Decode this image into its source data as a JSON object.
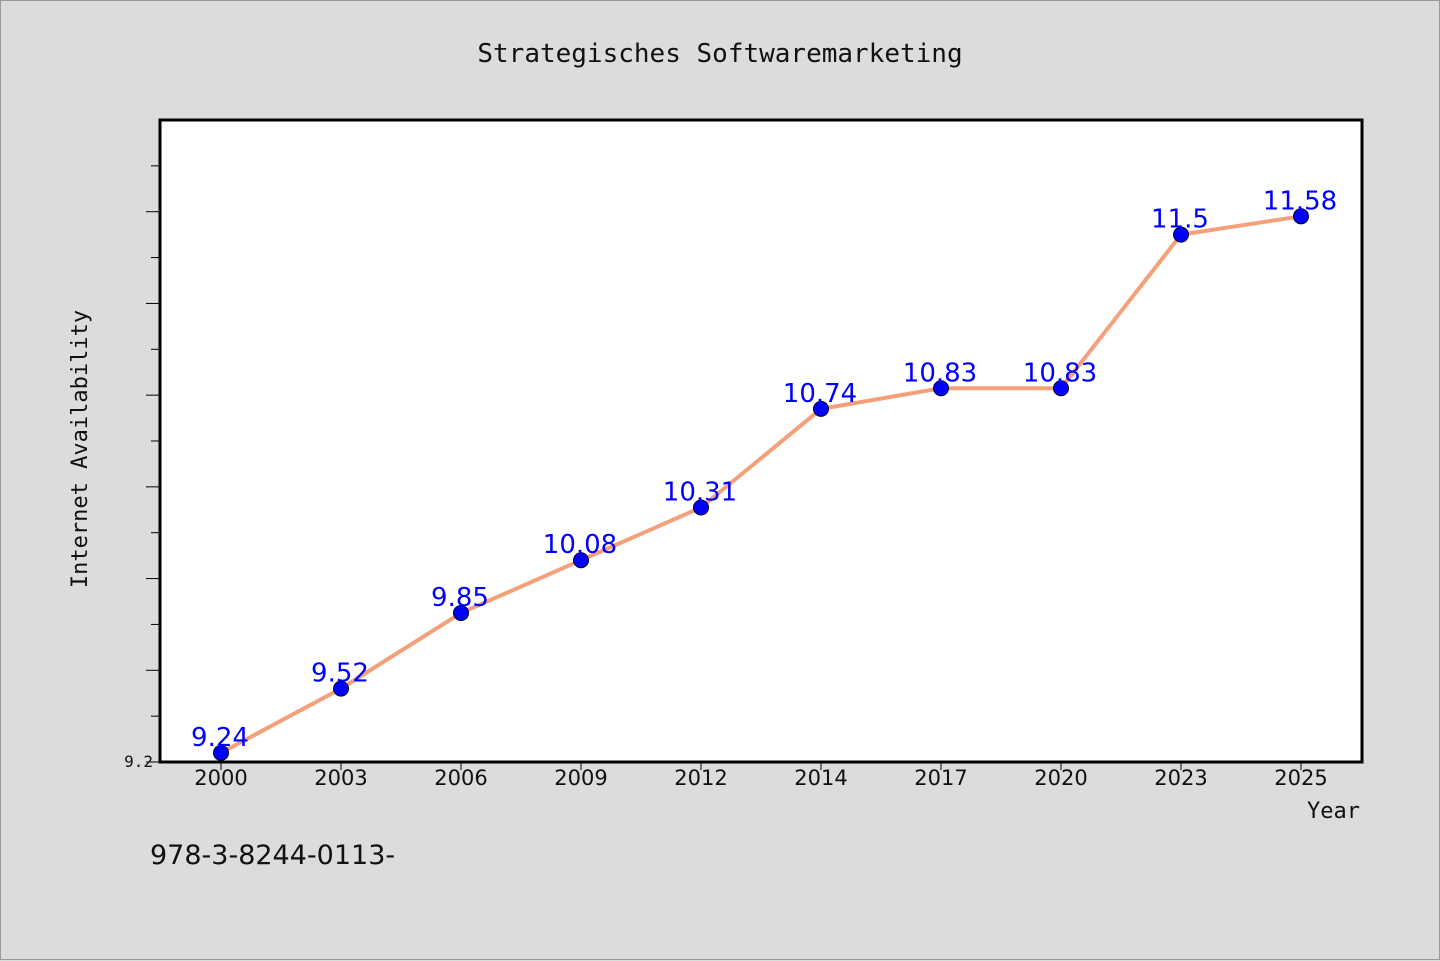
{
  "chart_data": {
    "type": "line",
    "title": "Strategisches Softwaremarketing",
    "xlabel": "Year",
    "ylabel": "Internet Availability",
    "categories": [
      "2000",
      "2003",
      "2006",
      "2009",
      "2012",
      "2014",
      "2017",
      "2020",
      "2023",
      "2025"
    ],
    "series": [
      {
        "values": [
          9.24,
          9.52,
          9.85,
          10.08,
          10.31,
          10.74,
          10.83,
          10.83,
          11.5,
          11.58
        ]
      }
    ],
    "data_labels": [
      "9.24",
      "9.52",
      "9.85",
      "10.08",
      "10.31",
      "10.74",
      "10.83",
      "10.83",
      "11.5",
      "11.58"
    ],
    "ylim": [
      9.2,
      12.0
    ],
    "y_tick_labels": [
      "9.2"
    ],
    "grid": false,
    "legend": "none",
    "colors": {
      "line": "#f4a07a",
      "marker": "#0000ff",
      "data_label": "#0000ff",
      "background": "#dcdcdc",
      "plot_bg": "#ffffff"
    }
  },
  "footer": {
    "text": "978-3-8244-0113-"
  }
}
